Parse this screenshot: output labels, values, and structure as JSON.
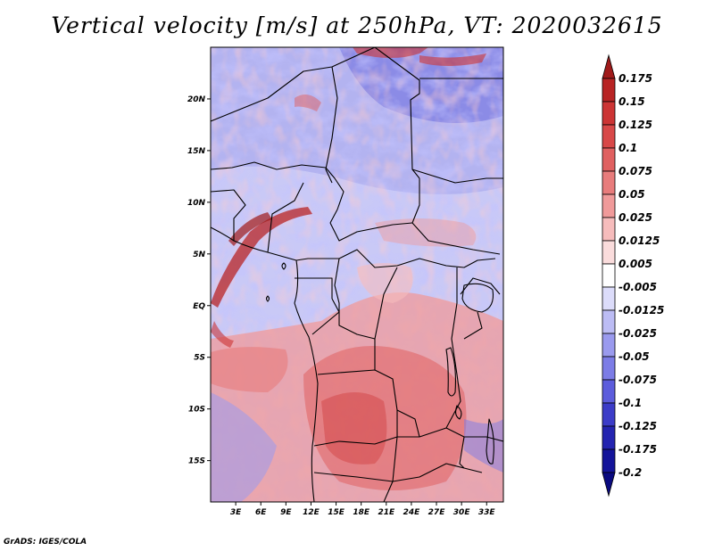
{
  "title": "Vertical velocity [m/s] at 250hPa, VT: 2020032615",
  "credit": "GrADS: IGES/COLA",
  "map": {
    "lon_range": [
      0,
      35
    ],
    "lat_range": [
      -19,
      25
    ],
    "lat_ticks": [
      {
        "value": 20,
        "label": "20N"
      },
      {
        "value": 15,
        "label": "15N"
      },
      {
        "value": 10,
        "label": "10N"
      },
      {
        "value": 5,
        "label": "5N"
      },
      {
        "value": 0,
        "label": "EQ"
      },
      {
        "value": -5,
        "label": "5S"
      },
      {
        "value": -10,
        "label": "10S"
      },
      {
        "value": -15,
        "label": "15S"
      }
    ],
    "lon_ticks": [
      {
        "value": 3,
        "label": "3E"
      },
      {
        "value": 6,
        "label": "6E"
      },
      {
        "value": 9,
        "label": "9E"
      },
      {
        "value": 12,
        "label": "12E"
      },
      {
        "value": 15,
        "label": "15E"
      },
      {
        "value": 18,
        "label": "18E"
      },
      {
        "value": 21,
        "label": "21E"
      },
      {
        "value": 24,
        "label": "24E"
      },
      {
        "value": 27,
        "label": "27E"
      },
      {
        "value": 30,
        "label": "30E"
      },
      {
        "value": 33,
        "label": "33E"
      }
    ]
  },
  "colorbar": {
    "labels": [
      "0.175",
      "0.15",
      "0.125",
      "0.1",
      "0.075",
      "0.05",
      "0.025",
      "0.0125",
      "0.005",
      "-0.005",
      "-0.0125",
      "-0.025",
      "-0.05",
      "-0.075",
      "-0.1",
      "-0.125",
      "-0.175",
      "-0.2"
    ],
    "colors": [
      "#a01a1a",
      "#b82424",
      "#cc3434",
      "#d84848",
      "#e06060",
      "#e87c7c",
      "#f09a9a",
      "#f6bcbc",
      "#fadcdc",
      "#ffffff",
      "#dcdcfa",
      "#bcbcf4",
      "#9a9aee",
      "#7c7ce6",
      "#5c5cdc",
      "#3c3cc8",
      "#2424b0",
      "#14149a",
      "#0a0a80"
    ]
  }
}
